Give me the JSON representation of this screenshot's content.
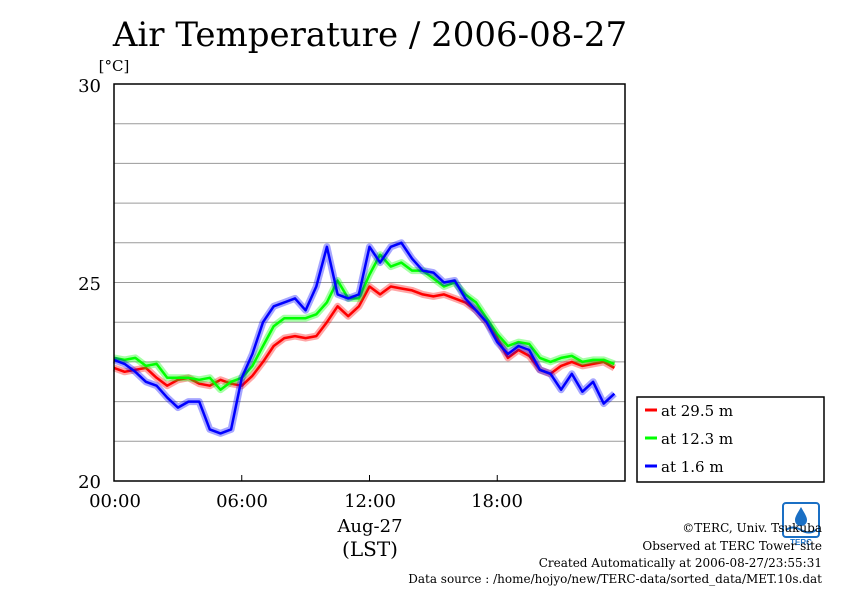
{
  "chart_data": {
    "type": "line",
    "title": "Air Temperature / 2006-08-27",
    "ylabel": "[°C]",
    "ylim": [
      20,
      30
    ],
    "yticks": [
      "20",
      "25",
      "30"
    ],
    "xlim": [
      0,
      24
    ],
    "xticks": [
      "00:00",
      "06:00",
      "12:00",
      "18:00"
    ],
    "xlabel_date": "Aug-27",
    "xlabel_unit": "(LST)",
    "grid": true,
    "legend_position": "bottom-right, outside plot",
    "series": [
      {
        "name": "at 29.5 m",
        "color": "#ff0000",
        "x": [
          0,
          0.5,
          1,
          1.5,
          2,
          2.5,
          3,
          3.5,
          4,
          4.5,
          5,
          5.5,
          6,
          6.5,
          7,
          7.5,
          8,
          8.5,
          9,
          9.5,
          10,
          10.5,
          11,
          11.5,
          12,
          12.5,
          13,
          13.5,
          14,
          14.5,
          15,
          15.5,
          16,
          16.5,
          17,
          17.5,
          18,
          18.5,
          19,
          19.5,
          20,
          20.5,
          21,
          21.5,
          22,
          22.5,
          23,
          23.5
        ],
        "values": [
          22.85,
          22.75,
          22.8,
          22.85,
          22.6,
          22.4,
          22.55,
          22.6,
          22.45,
          22.4,
          22.55,
          22.45,
          22.4,
          22.65,
          23.0,
          23.4,
          23.6,
          23.65,
          23.6,
          23.65,
          24.0,
          24.4,
          24.15,
          24.4,
          24.9,
          24.7,
          24.9,
          24.85,
          24.8,
          24.7,
          24.65,
          24.7,
          24.6,
          24.5,
          24.3,
          24.0,
          23.6,
          23.1,
          23.3,
          23.15,
          22.8,
          22.7,
          22.9,
          23.0,
          22.9,
          22.95,
          23.0,
          22.85
        ]
      },
      {
        "name": "at 12.3 m",
        "color": "#00ff00",
        "x": [
          0,
          0.5,
          1,
          1.5,
          2,
          2.5,
          3,
          3.5,
          4,
          4.5,
          5,
          5.5,
          6,
          6.5,
          7,
          7.5,
          8,
          8.5,
          9,
          9.5,
          10,
          10.5,
          11,
          11.5,
          12,
          12.5,
          13,
          13.5,
          14,
          14.5,
          15,
          15.5,
          16,
          16.5,
          17,
          17.5,
          18,
          18.5,
          19,
          19.5,
          20,
          20.5,
          21,
          21.5,
          22,
          22.5,
          23,
          23.5
        ],
        "values": [
          23.1,
          23.05,
          23.1,
          22.9,
          22.95,
          22.6,
          22.6,
          22.6,
          22.55,
          22.6,
          22.3,
          22.5,
          22.6,
          22.9,
          23.4,
          23.9,
          24.1,
          24.1,
          24.1,
          24.2,
          24.5,
          25.05,
          24.6,
          24.6,
          25.2,
          25.7,
          25.4,
          25.5,
          25.3,
          25.3,
          25.1,
          24.9,
          25.0,
          24.7,
          24.5,
          24.1,
          23.7,
          23.4,
          23.5,
          23.45,
          23.1,
          23.0,
          23.1,
          23.15,
          23.0,
          23.05,
          23.05,
          22.95
        ]
      },
      {
        "name": "at 1.6 m",
        "color": "#0000ff",
        "x": [
          0,
          0.5,
          1,
          1.5,
          2,
          2.5,
          3,
          3.5,
          4,
          4.5,
          5,
          5.5,
          6,
          6.5,
          7,
          7.5,
          8,
          8.5,
          9,
          9.5,
          10,
          10.5,
          11,
          11.5,
          12,
          12.5,
          13,
          13.5,
          14,
          14.5,
          15,
          15.5,
          16,
          16.5,
          17,
          17.5,
          18,
          18.5,
          19,
          19.5,
          20,
          20.5,
          21,
          21.5,
          22,
          22.5,
          23,
          23.5
        ],
        "values": [
          23.05,
          22.95,
          22.75,
          22.5,
          22.4,
          22.1,
          21.85,
          22.0,
          22.0,
          21.3,
          21.2,
          21.3,
          22.6,
          23.2,
          24.0,
          24.4,
          24.5,
          24.6,
          24.3,
          24.9,
          25.9,
          24.7,
          24.6,
          24.7,
          25.9,
          25.5,
          25.9,
          26.0,
          25.6,
          25.3,
          25.25,
          25.0,
          25.05,
          24.6,
          24.3,
          24.0,
          23.5,
          23.2,
          23.4,
          23.3,
          22.8,
          22.7,
          22.3,
          22.7,
          22.25,
          22.5,
          21.95,
          22.2
        ]
      }
    ]
  },
  "footer": {
    "copyright": "©TERC, Univ. Tsukuba",
    "site": "Observed at TERC Tower site",
    "created": "Created Automatically at 2006-08-27/23:55:31",
    "source": "Data source : /home/hojyo/new/TERC-data/sorted_data/MET.10s.dat"
  },
  "logo": {
    "text": "TERC",
    "color": "#1a6fc4"
  }
}
